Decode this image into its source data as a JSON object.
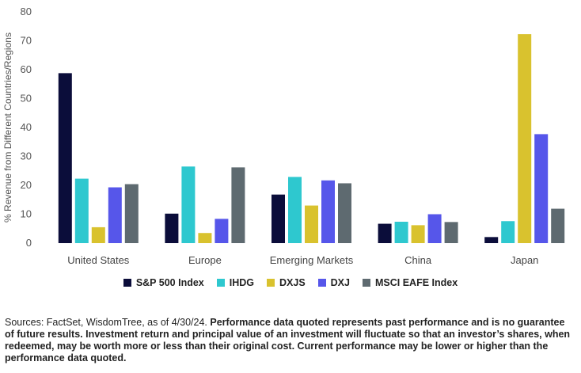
{
  "chart_data": {
    "type": "bar",
    "categories": [
      "United States",
      "Europe",
      "Emerging Markets",
      "China",
      "Japan"
    ],
    "series": [
      {
        "name": "S&P 500 Index",
        "color": "#0b0d3a",
        "values": [
          58.8,
          10.2,
          16.8,
          6.7,
          2.1
        ]
      },
      {
        "name": "IHDG",
        "color": "#2ec8cf",
        "values": [
          22.3,
          26.5,
          22.9,
          7.4,
          7.6
        ]
      },
      {
        "name": "DXJS",
        "color": "#d9c22e",
        "values": [
          5.5,
          3.5,
          13.0,
          6.2,
          72.3
        ]
      },
      {
        "name": "DXJ",
        "color": "#5656ea",
        "values": [
          19.3,
          8.4,
          21.7,
          10.0,
          37.7
        ]
      },
      {
        "name": "MSCI EAFE Index",
        "color": "#5e6a70",
        "values": [
          20.4,
          26.2,
          20.7,
          7.3,
          11.9
        ]
      }
    ],
    "yticks": [
      "0",
      "10",
      "20",
      "30",
      "40",
      "50",
      "60",
      "70",
      "80"
    ],
    "ylabel": "% Revenue from Different Countries/Regions",
    "ylim": [
      0,
      80
    ],
    "grid": false,
    "legend_position": "bottom"
  },
  "footnote": {
    "normal": "Sources: FactSet, WisdomTree, as of 4/30/24. ",
    "bold": "Performance data quoted represents past performance and is no guarantee of future results. Investment return and principal value of an investment will fluctuate so that an investor’s shares, when redeemed, may be worth more or less than their original cost. Current performance may be lower or higher than the performance data quoted."
  }
}
